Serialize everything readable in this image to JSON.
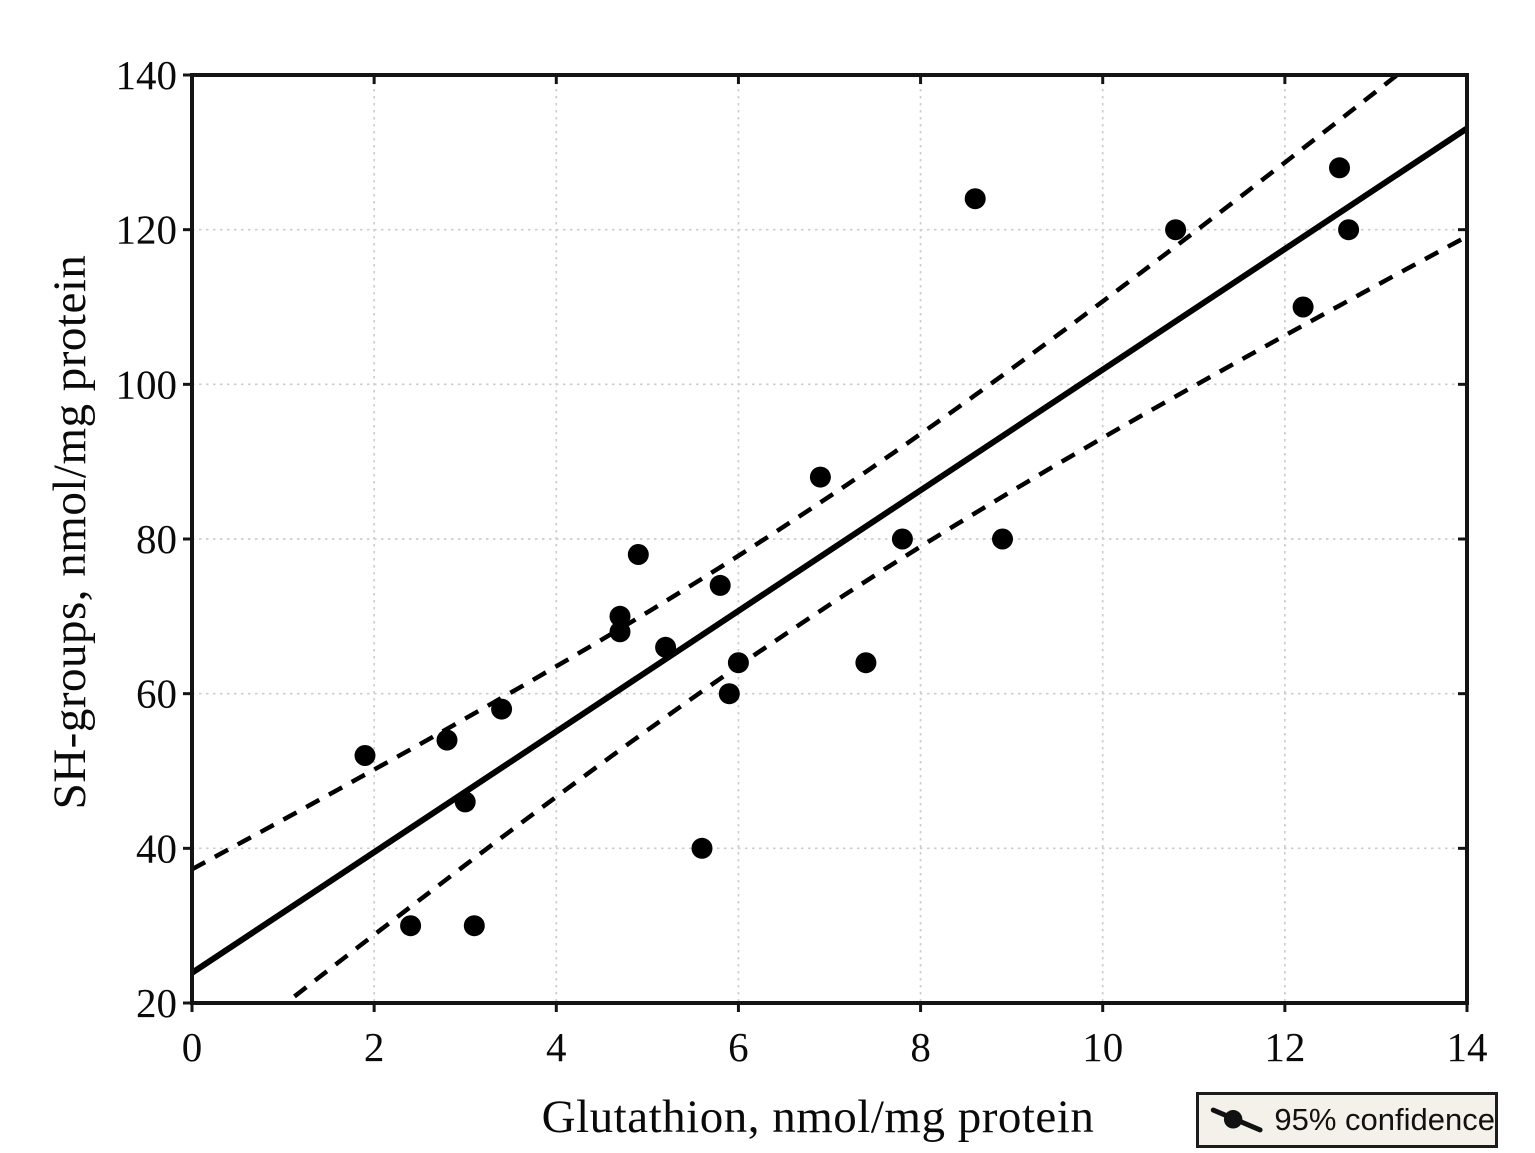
{
  "chart_data": {
    "type": "scatter",
    "title": "",
    "xlabel": "Glutathion, nmol/mg protein",
    "ylabel": "SH-groups, nmol/mg protein",
    "xlim": [
      0,
      14
    ],
    "ylim": [
      20,
      140
    ],
    "xticks": [
      0,
      2,
      4,
      6,
      8,
      10,
      12,
      14
    ],
    "yticks": [
      20,
      40,
      60,
      80,
      100,
      120,
      140
    ],
    "grid": true,
    "points": [
      [
        1.9,
        52
      ],
      [
        2.4,
        30
      ],
      [
        2.8,
        54
      ],
      [
        3.0,
        46
      ],
      [
        3.1,
        30
      ],
      [
        3.4,
        58
      ],
      [
        4.7,
        68
      ],
      [
        4.7,
        70
      ],
      [
        4.9,
        78
      ],
      [
        5.2,
        66
      ],
      [
        5.6,
        40
      ],
      [
        5.8,
        74
      ],
      [
        5.9,
        60
      ],
      [
        6.0,
        64
      ],
      [
        6.9,
        88
      ],
      [
        7.4,
        64
      ],
      [
        7.8,
        80
      ],
      [
        8.6,
        124
      ],
      [
        8.9,
        80
      ],
      [
        10.8,
        120
      ],
      [
        12.2,
        110
      ],
      [
        12.6,
        128
      ],
      [
        12.7,
        120
      ]
    ],
    "regression_line": {
      "intercept": 23.9,
      "slope": 7.8,
      "style": "solid"
    },
    "confidence_band": {
      "min_half_width": 7.0,
      "center_x": 6.8,
      "spread": 2.82,
      "style": "dashed",
      "upper_at_x0": 37.3,
      "lower_at_x14": 119.1
    },
    "legend": {
      "label": "95% confidence",
      "position": "bottom-right"
    },
    "colors": {
      "points": "#000000",
      "line": "#000000",
      "band": "#000000",
      "grid": "#cdcdcd",
      "axis": "#141414",
      "text": "#0a0a0a",
      "legend_bg": "#f4f1ea",
      "legend_border": "#1c1c1c"
    }
  }
}
